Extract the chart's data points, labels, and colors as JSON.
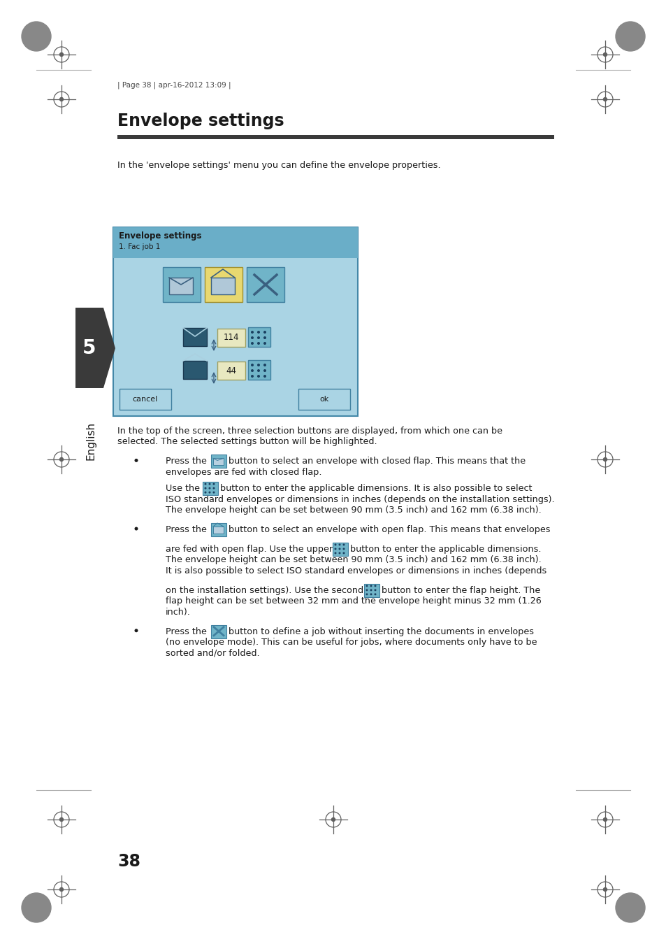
{
  "bg_color": "#ffffff",
  "page_number": "38",
  "header_text": "| Page 38 | apr-16-2012 13:09 |",
  "title": "Envelope settings",
  "title_underline_color": "#3a3a3a",
  "intro_text": "In the 'envelope settings' menu you can define the envelope properties.",
  "screen_title": "Envelope settings",
  "screen_subtitle": "1. Fac job 1",
  "screen_bg": "#aad4e4",
  "screen_border": "#5090b0",
  "button_bg_selected": "#e8d870",
  "button_bg_normal": "#70b4c8",
  "body_text_1a": "In the top of the screen, three selection buttons are displayed, from which one can be",
  "body_text_1b": "selected. The selected settings button will be highlighted.",
  "footer_number": "38",
  "sidebar_text": "English",
  "sidebar_number": "5",
  "text_color": "#1a1a1a",
  "mark_color": "#606060",
  "grey_circle_color": "#888888"
}
